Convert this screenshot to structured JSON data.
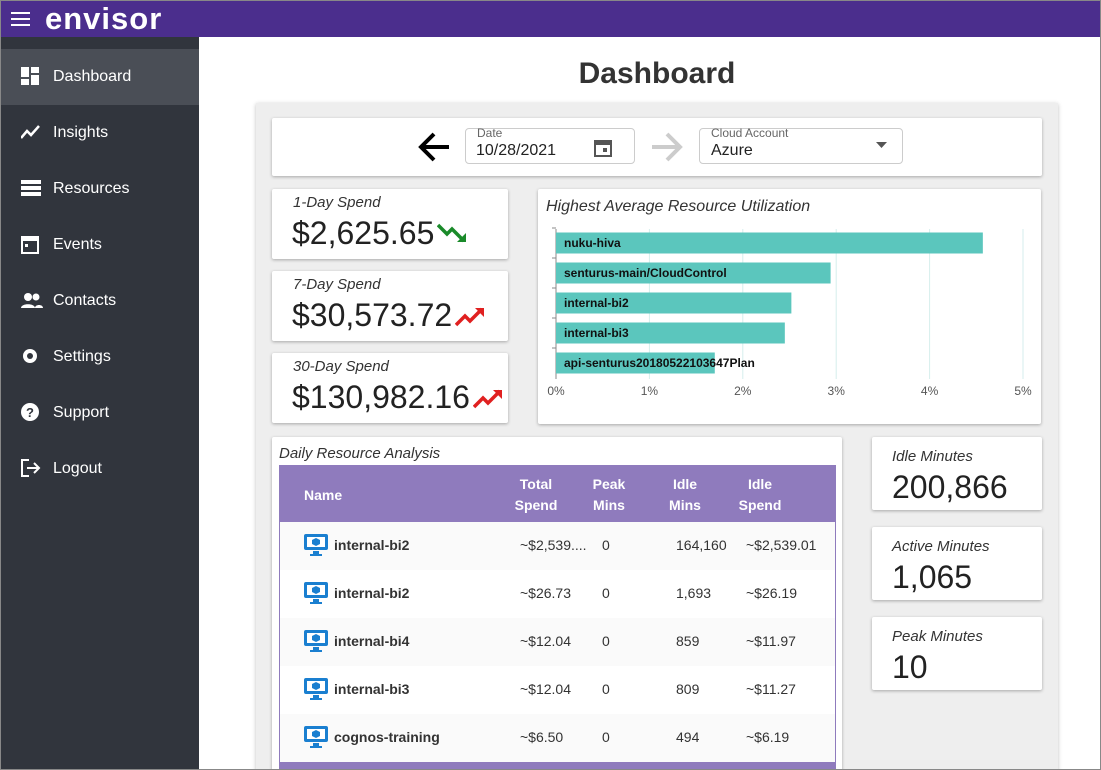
{
  "header": {
    "logo": "envisor"
  },
  "nav": [
    "Dashboard",
    "Insights",
    "Resources",
    "Events",
    "Contacts",
    "Settings",
    "Support",
    "Logout"
  ],
  "page_title": "Dashboard",
  "filters": {
    "date_label": "Date",
    "date": "10/28/2021",
    "account_label": "Cloud Account",
    "account": "Azure"
  },
  "spend_cards": [
    {
      "label": "1-Day Spend",
      "value": "$2,625.65",
      "trend": "down"
    },
    {
      "label": "7-Day Spend",
      "value": "$30,573.72",
      "trend": "up"
    },
    {
      "label": "30-Day Spend",
      "value": "$130,982.16",
      "trend": "up"
    }
  ],
  "chart_data": {
    "type": "bar",
    "title": "Highest Average Resource Utilization",
    "categories": [
      "nuku-hiva",
      "senturus-main/CloudControl",
      "internal-bi2",
      "internal-bi3",
      "api-senturus20180522103647Plan"
    ],
    "values": [
      4.57,
      2.94,
      2.52,
      2.45,
      1.7
    ],
    "color": "#5bc6bd",
    "xlim": [
      0,
      5
    ],
    "xticks": [
      {
        "value": 0,
        "label": "0%"
      },
      {
        "value": 1,
        "label": "1%"
      },
      {
        "value": 2,
        "label": "2%"
      },
      {
        "value": 3,
        "label": "3%"
      },
      {
        "value": 4,
        "label": "4%"
      },
      {
        "value": 5,
        "label": "5%"
      }
    ],
    "grid": true
  },
  "table": {
    "title": "Daily Resource Analysis",
    "columns": [
      "Name",
      "Total Spend",
      "Peak Mins",
      "Idle Mins",
      "Idle Spend"
    ],
    "rows": [
      [
        "internal-bi2",
        "~$2,539....",
        "0",
        "164,160",
        "~$2,539.01"
      ],
      [
        "internal-bi2",
        "~$26.73",
        "0",
        "1,693",
        "~$26.19"
      ],
      [
        "internal-bi4",
        "~$12.04",
        "0",
        "859",
        "~$11.97"
      ],
      [
        "internal-bi3",
        "~$12.04",
        "0",
        "809",
        "~$11.27"
      ],
      [
        "cognos-training",
        "~$6.50",
        "0",
        "494",
        "~$6.19"
      ]
    ]
  },
  "stats": [
    {
      "label": "Idle Minutes",
      "value": "200,866"
    },
    {
      "label": "Active Minutes",
      "value": "1,065"
    },
    {
      "label": "Peak Minutes",
      "value": "10"
    }
  ]
}
